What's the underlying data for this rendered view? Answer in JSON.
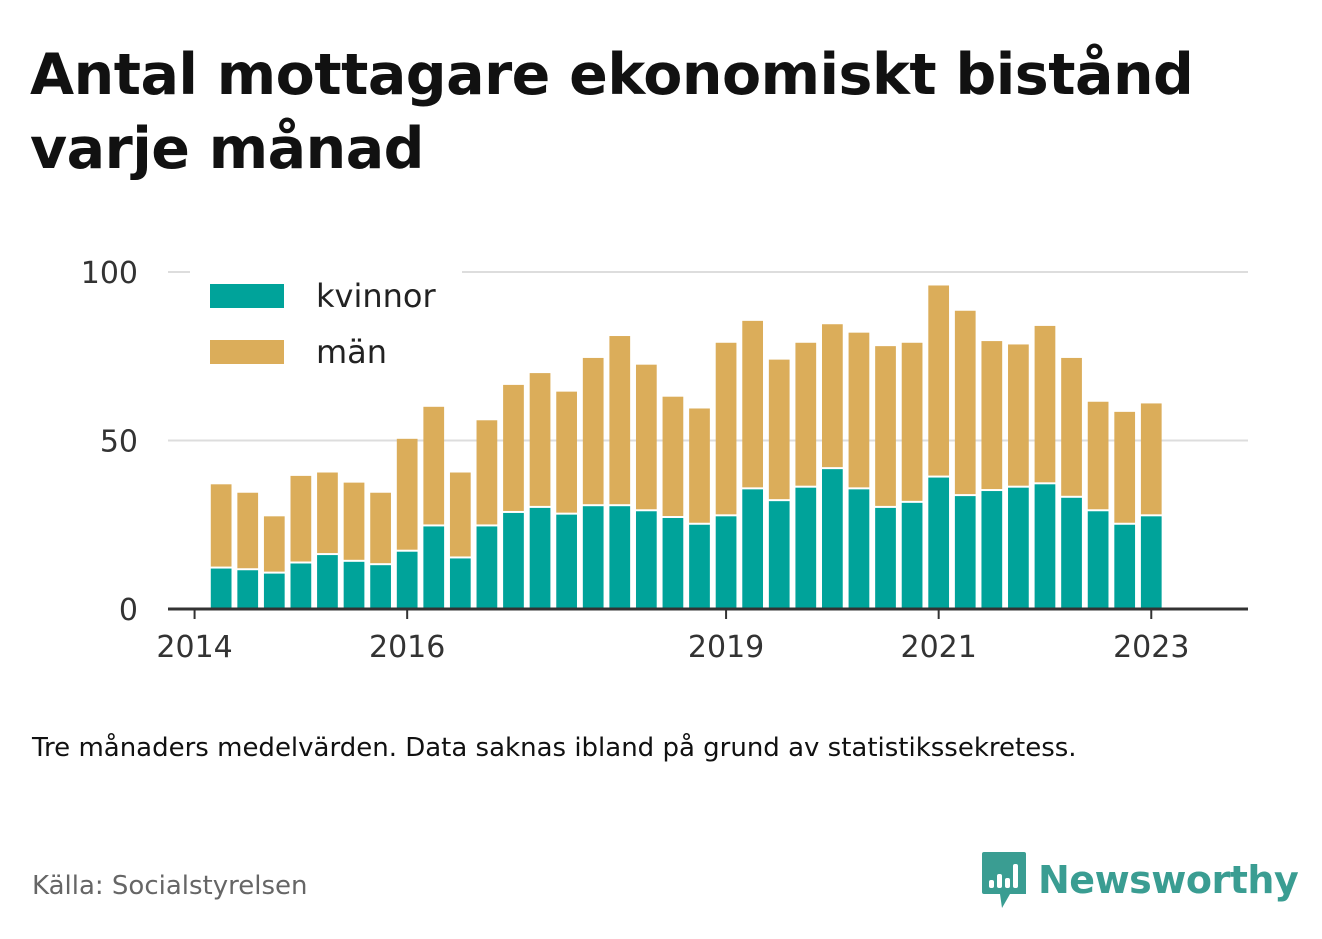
{
  "title": "Antal mottagare ekonomiskt bistånd varje månad",
  "note": "Tre månaders medelvärden. Data saknas ibland på grund av statistikssekretess.",
  "source": "Källa: Socialstyrelsen",
  "brand": {
    "name": "Newsworthy",
    "icon": "newsworthy-logo-icon",
    "color": "#3a9d92"
  },
  "chart_data": {
    "type": "bar",
    "stacked": true,
    "title": "Antal mottagare ekonomiskt bistånd varje månad",
    "xlabel": "",
    "ylabel": "",
    "ylim": [
      0,
      100
    ],
    "xlim": [
      2013.75,
      2023.91
    ],
    "y_ticks": [
      0,
      50,
      100
    ],
    "x_ticks": [
      2014,
      2016,
      2019,
      2021,
      2023
    ],
    "grid": true,
    "legend": "top-left",
    "x": [
      2014.25,
      2014.5,
      2014.75,
      2015.0,
      2015.25,
      2015.5,
      2015.75,
      2016.0,
      2016.25,
      2016.5,
      2016.75,
      2017.0,
      2017.25,
      2017.5,
      2017.75,
      2018.0,
      2018.25,
      2018.5,
      2018.75,
      2019.0,
      2019.25,
      2019.5,
      2019.75,
      2020.0,
      2020.25,
      2020.5,
      2020.75,
      2021.0,
      2021.25,
      2021.5,
      2021.75,
      2022.0,
      2022.25,
      2022.5,
      2022.75,
      2023.0
    ],
    "series": [
      {
        "name": "kvinnor",
        "color": "#00a39a",
        "values": [
          12,
          11.5,
          10.5,
          13.5,
          16,
          14,
          13,
          17,
          24.5,
          15,
          24.5,
          28.5,
          30,
          28,
          30.5,
          30.5,
          29,
          27,
          25,
          27.5,
          35.5,
          32,
          36,
          41.5,
          35.5,
          30,
          31.5,
          39,
          33.5,
          35,
          36,
          37,
          33,
          29,
          25,
          27.5
        ]
      },
      {
        "name": "män",
        "color": "#dbad5a",
        "values": [
          25,
          23,
          17,
          26,
          24.5,
          23.5,
          21.5,
          33.5,
          35.5,
          25.5,
          31.5,
          38,
          40,
          36.5,
          44,
          50.5,
          43.5,
          36,
          34.5,
          51.5,
          50,
          42,
          43,
          43,
          46.5,
          48,
          47.5,
          57,
          55,
          44.5,
          42.5,
          47,
          41.5,
          32.5,
          33.5,
          33.5
        ]
      }
    ]
  }
}
